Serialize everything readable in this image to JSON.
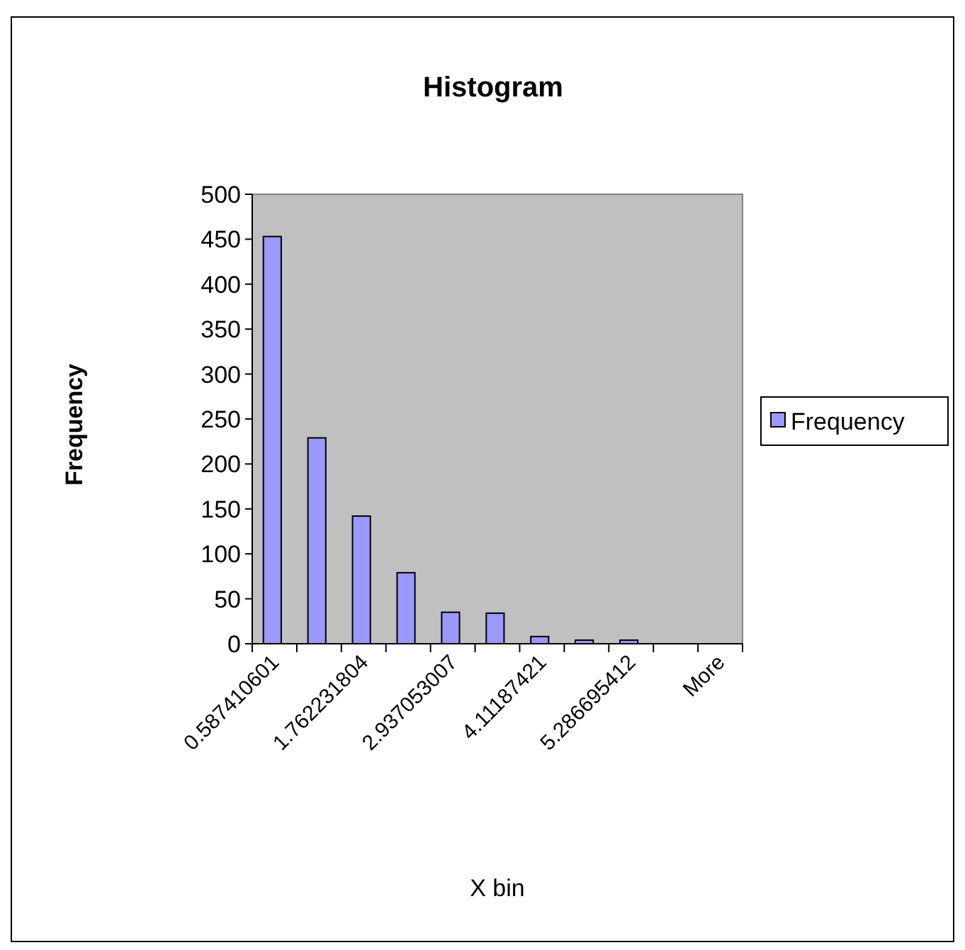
{
  "chart_data": {
    "type": "bar",
    "title": "Histogram",
    "xlabel": "X bin",
    "ylabel": "Frequency",
    "categories": [
      "0.587410601",
      null,
      "1.762231804",
      null,
      "2.937053007",
      null,
      "4.11187421",
      null,
      "5.286695412",
      null,
      "More"
    ],
    "series": [
      {
        "name": "Frequency",
        "color": "#9999ff",
        "values": [
          453,
          229,
          142,
          79,
          35,
          34,
          8,
          4,
          4,
          0,
          0
        ]
      }
    ],
    "ylim": [
      0,
      500
    ],
    "yticks": [
      0,
      50,
      100,
      150,
      200,
      250,
      300,
      350,
      400,
      450,
      500
    ],
    "grid": false,
    "legend": "right"
  }
}
